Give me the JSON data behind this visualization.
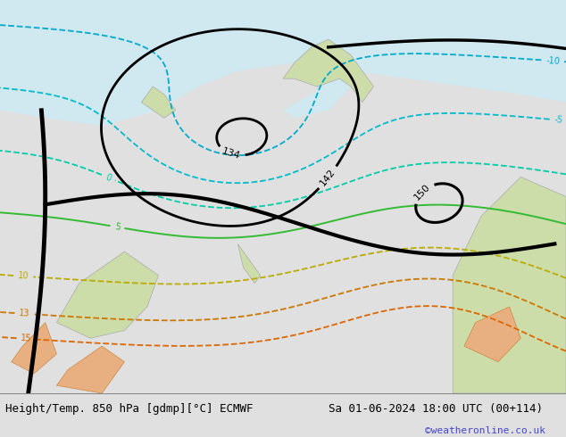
{
  "title_left": "Height/Temp. 850 hPa [gdmp][°C] ECMWF",
  "title_right": "Sa 01-06-2024 18:00 UTC (00+114)",
  "credit": "©weatheronline.co.uk",
  "credit_color": "#4444cc",
  "bg_color": "#e0e0e0",
  "map_bg": "#b8d890",
  "sea_color": "#d0e8f0",
  "bottom_bar_color": "#ffffff",
  "bottom_bar_height": 0.1,
  "title_fontsize": 9,
  "credit_fontsize": 8
}
